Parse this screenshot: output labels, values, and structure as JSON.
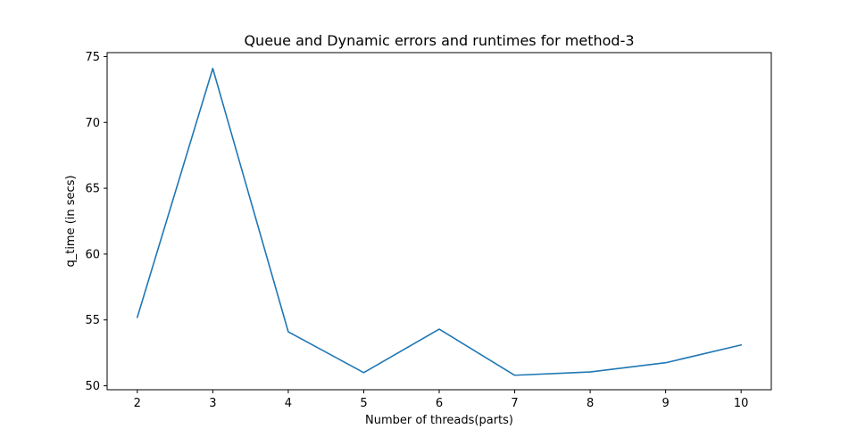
{
  "chart_data": {
    "type": "line",
    "title": "Queue and Dynamic errors and runtimes for method-3",
    "xlabel": "Number of threads(parts)",
    "ylabel": "q_time (in secs)",
    "x": [
      2,
      3,
      4,
      5,
      6,
      7,
      8,
      9,
      10
    ],
    "series": [
      {
        "values": [
          55.2,
          74.1,
          54.1,
          51.0,
          54.3,
          50.8,
          51.05,
          51.75,
          53.1
        ],
        "color": "#1f77b4"
      }
    ],
    "xticks": [
      "2",
      "3",
      "4",
      "5",
      "6",
      "7",
      "8",
      "9",
      "10"
    ],
    "yticks": [
      "50",
      "55",
      "60",
      "65",
      "70",
      "75"
    ],
    "xlim": [
      1.6,
      10.4
    ],
    "ylim": [
      49.7,
      75.3
    ],
    "grid": false,
    "legend": "none"
  }
}
